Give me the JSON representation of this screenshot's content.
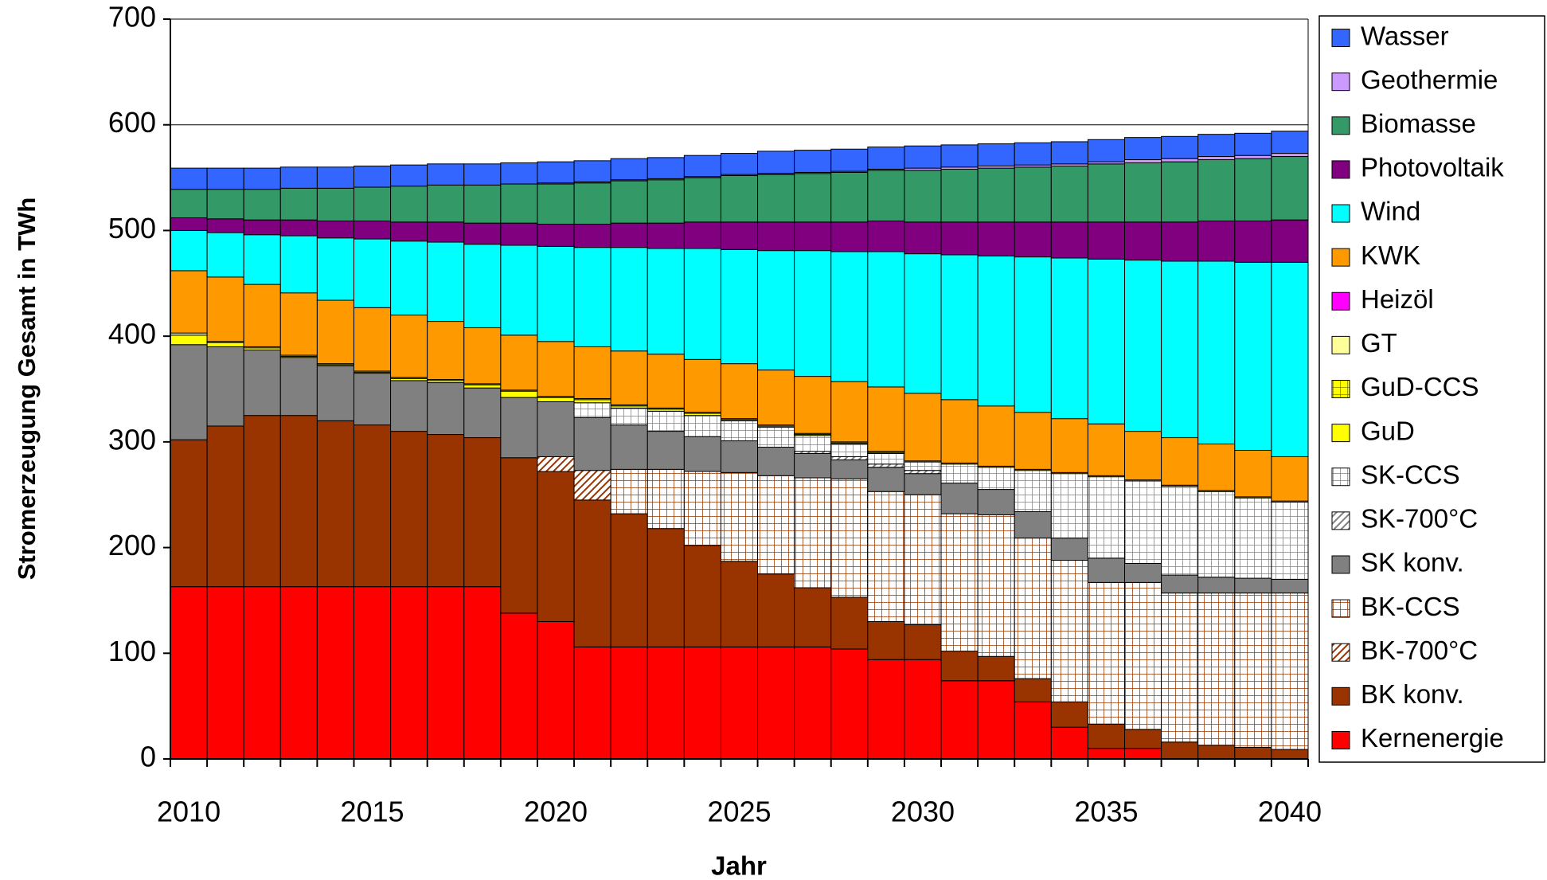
{
  "chart_data": {
    "type": "stacked-bar",
    "x_label": "Jahr",
    "y_label": "Stromerzeugung Gesamt in TWh",
    "categories": [
      "2010",
      null,
      null,
      null,
      null,
      "2015",
      null,
      null,
      null,
      null,
      "2020",
      null,
      null,
      null,
      null,
      "2025",
      null,
      null,
      null,
      null,
      "2030",
      null,
      null,
      null,
      null,
      "2035",
      null,
      null,
      null,
      null,
      "2040"
    ],
    "ylim": [
      0,
      700
    ],
    "yticks": [
      0,
      100,
      200,
      300,
      400,
      500,
      600,
      700
    ],
    "grid": true,
    "legend": "right",
    "series": [
      {
        "name": "Kernenergie",
        "color": "#ff0000",
        "pattern": "solid",
        "values": [
          163,
          163,
          163,
          163,
          163,
          163,
          163,
          163,
          163,
          138,
          130,
          106,
          106,
          106,
          106,
          106,
          106,
          106,
          104,
          94,
          94,
          74,
          74,
          54,
          30,
          10,
          10,
          0,
          0,
          0,
          0
        ]
      },
      {
        "name": "BK konv.",
        "color": "#993300",
        "pattern": "solid",
        "values": [
          139,
          152,
          162,
          162,
          157,
          153,
          147,
          144,
          141,
          147,
          142,
          139,
          126,
          112,
          96,
          81,
          69,
          56,
          49,
          36,
          33,
          28,
          23,
          22,
          24,
          23,
          18,
          16,
          13,
          11,
          9
        ]
      },
      {
        "name": "BK-700°C",
        "color": "#993300",
        "pattern": "hatch",
        "values": [
          0,
          0,
          0,
          0,
          0,
          0,
          0,
          0,
          0,
          0,
          14,
          28,
          0,
          0,
          0,
          0,
          0,
          0,
          0,
          0,
          0,
          0,
          0,
          0,
          0,
          0,
          0,
          0,
          0,
          0,
          0
        ]
      },
      {
        "name": "BK-CCS",
        "color": "#993300",
        "pattern": "grid",
        "values": [
          0,
          0,
          0,
          0,
          0,
          0,
          0,
          0,
          0,
          0,
          0,
          0,
          42,
          56,
          70,
          84,
          93,
          104,
          112,
          123,
          123,
          130,
          134,
          133,
          134,
          134,
          139,
          141,
          144,
          146,
          148
        ]
      },
      {
        "name": "SK konv.",
        "color": "#808080",
        "pattern": "solid",
        "values": [
          90,
          75,
          62,
          55,
          52,
          49,
          48,
          49,
          47,
          57,
          52,
          50,
          42,
          36,
          33,
          30,
          27,
          23,
          18,
          23,
          20,
          29,
          24,
          25,
          21,
          23,
          18,
          17,
          15,
          14,
          13
        ]
      },
      {
        "name": "SK-700°C",
        "color": "#808080",
        "pattern": "hatch",
        "values": [
          0,
          0,
          0,
          0,
          0,
          0,
          0,
          0,
          0,
          0,
          0,
          0,
          0,
          0,
          0,
          0,
          0,
          2,
          3,
          3,
          3,
          0,
          0,
          0,
          0,
          0,
          0,
          0,
          0,
          0,
          0
        ]
      },
      {
        "name": "SK-CCS",
        "color": "#808080",
        "pattern": "grid",
        "values": [
          0,
          0,
          0,
          0,
          0,
          0,
          0,
          0,
          0,
          0,
          0,
          14,
          16,
          19,
          20,
          19,
          19,
          15,
          12,
          10,
          8,
          18,
          21,
          39,
          61,
          77,
          78,
          84,
          81,
          76,
          73
        ]
      },
      {
        "name": "GuD",
        "color": "#ffff00",
        "pattern": "solid",
        "values": [
          9,
          4,
          2,
          1,
          1,
          1,
          2,
          2,
          3,
          6,
          4,
          3,
          2,
          2,
          2,
          1,
          1,
          1,
          1,
          1,
          1,
          1,
          1,
          1,
          1,
          1,
          1,
          1,
          1,
          1,
          1
        ]
      },
      {
        "name": "GuD-CCS",
        "color": "#ffff00",
        "pattern": "grid",
        "values": [
          0,
          0,
          0,
          0,
          0,
          0,
          0,
          0,
          0,
          0,
          0,
          0,
          0,
          0,
          0,
          0,
          0,
          0,
          0,
          0,
          0,
          0,
          0,
          0,
          0,
          0,
          0,
          0,
          0,
          0,
          0
        ]
      },
      {
        "name": "GT",
        "color": "#ffff99",
        "pattern": "solid",
        "values": [
          2,
          1,
          1,
          1,
          1,
          1,
          1,
          1,
          1,
          1,
          1,
          1,
          1,
          1,
          1,
          1,
          1,
          1,
          1,
          1,
          0,
          0,
          0,
          0,
          0,
          0,
          0,
          0,
          0,
          0,
          0
        ]
      },
      {
        "name": "Heizöl",
        "color": "#ff00ff",
        "pattern": "solid",
        "values": [
          0,
          0,
          0,
          0,
          0,
          0,
          0,
          0,
          0,
          0,
          0,
          0,
          0,
          0,
          0,
          0,
          0,
          0,
          0,
          0,
          0,
          0,
          0,
          0,
          0,
          0,
          0,
          0,
          0,
          0,
          0
        ]
      },
      {
        "name": "KWK",
        "color": "#ff9900",
        "pattern": "solid",
        "values": [
          59,
          61,
          59,
          59,
          60,
          60,
          59,
          55,
          53,
          52,
          52,
          49,
          51,
          51,
          50,
          52,
          52,
          54,
          57,
          61,
          64,
          60,
          57,
          54,
          51,
          49,
          46,
          45,
          44,
          44,
          42
        ]
      },
      {
        "name": "Wind",
        "color": "#00ffff",
        "pattern": "solid",
        "values": [
          38,
          42,
          47,
          54,
          59,
          65,
          70,
          75,
          79,
          85,
          90,
          94,
          98,
          100,
          105,
          108,
          113,
          119,
          123,
          128,
          132,
          137,
          142,
          147,
          152,
          156,
          162,
          167,
          173,
          178,
          184
        ]
      },
      {
        "name": "Photovoltaik",
        "color": "#800080",
        "pattern": "solid",
        "values": [
          12,
          13,
          14,
          15,
          16,
          17,
          18,
          19,
          20,
          21,
          21,
          22,
          23,
          24,
          25,
          26,
          27,
          27,
          28,
          29,
          30,
          31,
          32,
          33,
          34,
          35,
          36,
          37,
          38,
          39,
          40
        ]
      },
      {
        "name": "Biomasse",
        "color": "#339966",
        "pattern": "solid",
        "values": [
          27,
          28,
          29,
          30,
          31,
          32,
          34,
          35,
          36,
          37,
          38,
          39,
          40,
          41,
          42,
          44,
          45,
          46,
          47,
          48,
          49,
          50,
          51,
          52,
          53,
          55,
          56,
          57,
          58,
          59,
          60
        ]
      },
      {
        "name": "Geothermie",
        "color": "#cc99ff",
        "pattern": "solid",
        "values": [
          0,
          0,
          0,
          0,
          0,
          0,
          0,
          0,
          0,
          0,
          1,
          1,
          1,
          1,
          1,
          1,
          1,
          1,
          1,
          1,
          2,
          2,
          2,
          2,
          2,
          2,
          3,
          3,
          3,
          3,
          3
        ]
      },
      {
        "name": "Wasser",
        "color": "#3366ff",
        "pattern": "solid",
        "values": [
          20,
          20,
          20,
          20,
          20,
          20,
          20,
          20,
          20,
          20,
          20,
          20,
          20,
          20,
          20,
          20,
          21,
          21,
          21,
          21,
          21,
          21,
          21,
          21,
          21,
          21,
          21,
          21,
          21,
          21,
          21
        ]
      }
    ]
  }
}
